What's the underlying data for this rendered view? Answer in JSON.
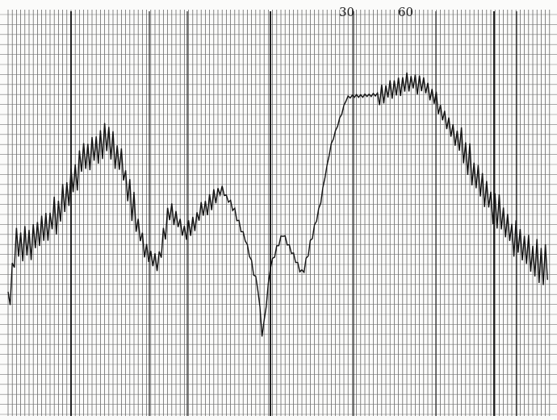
{
  "header": {
    "marks": [
      "30",
      "60"
    ]
  }
}
